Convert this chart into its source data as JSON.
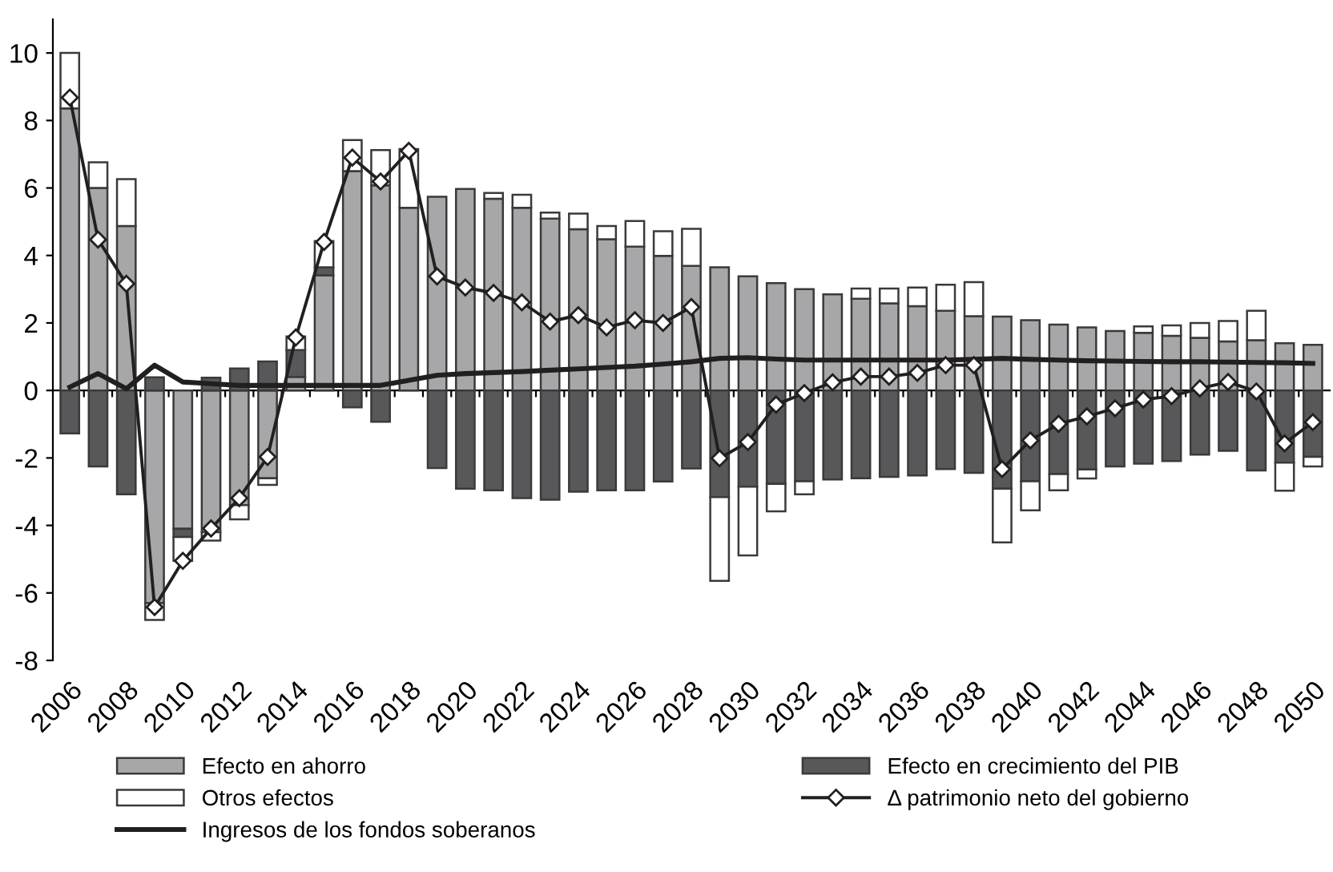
{
  "chart_data": {
    "type": "bar",
    "stacked": true,
    "categories": [
      "2006",
      null,
      "2008",
      null,
      "2010",
      null,
      "2012",
      null,
      "2014",
      null,
      "2016",
      null,
      "2018",
      null,
      "2020",
      null,
      "2022",
      null,
      "2024",
      null,
      "2026",
      null,
      "2028",
      null,
      "2030",
      null,
      "2032",
      null,
      "2034",
      null,
      "2036",
      null,
      "2038",
      null,
      "2040",
      null,
      "2042",
      null,
      "2044",
      null,
      "2046",
      null,
      "2048",
      null,
      "2050"
    ],
    "ylim": [
      -8,
      11
    ],
    "yticks": [
      -8,
      -6,
      -4,
      -2,
      0,
      2,
      4,
      6,
      8,
      10
    ],
    "legend": "bottom",
    "series": [
      {
        "name": "Efecto en ahorro",
        "color": "#a7a7a9",
        "values": [
          8.36,
          6.0,
          4.87,
          -6.3,
          -4.1,
          -4.2,
          -3.4,
          -2.6,
          0.4,
          3.41,
          6.5,
          6.08,
          5.41,
          5.74,
          5.97,
          5.68,
          5.41,
          5.09,
          4.78,
          4.48,
          4.26,
          3.99,
          3.69,
          3.65,
          3.38,
          3.18,
          3.0,
          2.85,
          2.72,
          2.58,
          2.5,
          2.36,
          2.2,
          2.19,
          2.08,
          1.95,
          1.87,
          1.76,
          1.71,
          1.62,
          1.56,
          1.45,
          1.49,
          1.4,
          1.35
        ]
      },
      {
        "name": "Efecto en crecimiento del PIB",
        "color": "#58585a",
        "values": [
          -1.27,
          -2.25,
          -3.08,
          0.39,
          -0.24,
          0.38,
          0.65,
          0.86,
          0.8,
          0.24,
          -0.5,
          -0.93,
          null,
          -2.3,
          -2.91,
          -2.96,
          -3.19,
          -3.24,
          -3.0,
          -2.96,
          -2.96,
          -2.7,
          -2.31,
          -3.16,
          -2.85,
          -2.77,
          -2.69,
          -2.64,
          -2.6,
          -2.56,
          -2.52,
          -2.33,
          -2.44,
          -2.91,
          -2.69,
          -2.48,
          -2.34,
          -2.25,
          -2.17,
          -2.09,
          -1.9,
          -1.79,
          -2.37,
          -2.14,
          -1.97
        ]
      },
      {
        "name": "Otros efectos",
        "color": "#ffffff",
        "values": [
          1.64,
          0.76,
          1.39,
          -0.5,
          -0.71,
          -0.25,
          -0.42,
          -0.2,
          0.4,
          0.78,
          0.92,
          1.04,
          1.74,
          null,
          null,
          0.17,
          0.39,
          0.18,
          0.46,
          0.39,
          0.76,
          0.73,
          1.1,
          -2.48,
          -2.04,
          -0.81,
          -0.39,
          null,
          0.3,
          0.44,
          0.55,
          0.77,
          1.01,
          -1.59,
          -0.86,
          -0.48,
          -0.27,
          null,
          0.19,
          0.31,
          0.44,
          0.61,
          0.87,
          -0.83,
          -0.28
        ]
      },
      {
        "name": "Δ patrimonio neto del gobierno",
        "type": "line",
        "color": "#231f20",
        "marker": "diamond",
        "values": [
          8.68,
          4.47,
          3.16,
          -6.42,
          -5.05,
          -4.09,
          -3.19,
          -1.97,
          1.57,
          4.4,
          6.9,
          6.19,
          7.1,
          3.38,
          3.05,
          2.89,
          2.61,
          2.04,
          2.23,
          1.87,
          2.08,
          2.0,
          2.47,
          -2.01,
          -1.53,
          -0.42,
          -0.08,
          0.24,
          0.41,
          0.41,
          0.52,
          0.75,
          0.75,
          -2.33,
          -1.48,
          -0.99,
          -0.77,
          -0.53,
          -0.27,
          -0.17,
          0.06,
          0.25,
          -0.03,
          -1.57,
          -0.94
        ]
      },
      {
        "name": "Ingresos de los fondos soberanos",
        "type": "line",
        "color": "#231f20",
        "marker": "none",
        "values": [
          0.1,
          0.5,
          0.05,
          0.75,
          0.25,
          0.2,
          0.15,
          0.15,
          0.15,
          0.15,
          0.15,
          0.15,
          0.3,
          0.45,
          0.5,
          0.53,
          0.56,
          0.6,
          0.64,
          0.68,
          0.72,
          0.78,
          0.85,
          0.95,
          0.97,
          0.93,
          0.9,
          0.9,
          0.9,
          0.9,
          0.9,
          0.9,
          0.92,
          0.95,
          0.92,
          0.9,
          0.88,
          0.87,
          0.86,
          0.85,
          0.85,
          0.84,
          0.83,
          0.82,
          0.8
        ]
      }
    ]
  }
}
